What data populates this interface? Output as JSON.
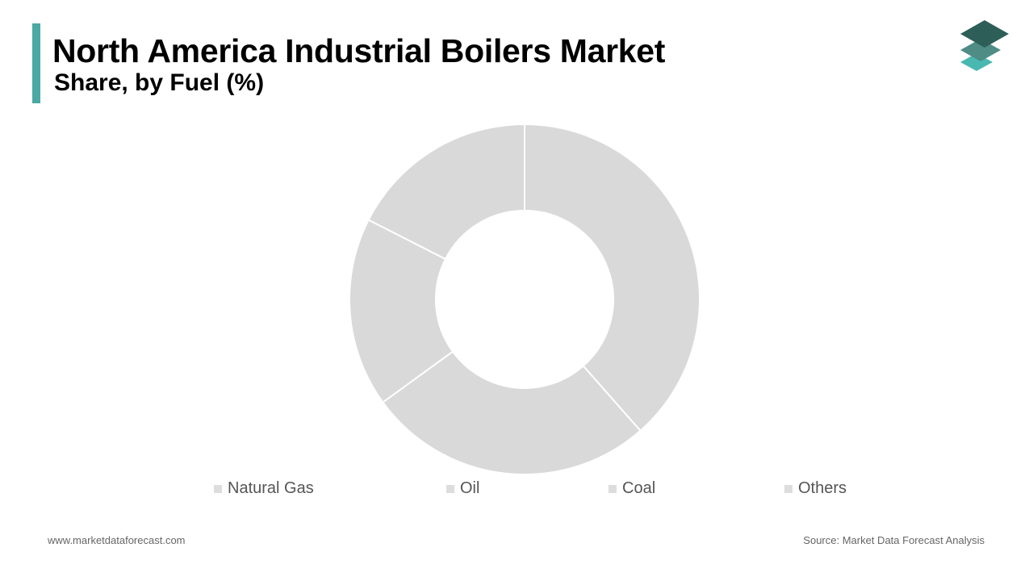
{
  "header": {
    "title": "North America Industrial Boilers Market",
    "subtitle": "Share, by Fuel (%)"
  },
  "colors": {
    "accent": "#4aa9a4",
    "logo_dark": "#2e5e58",
    "logo_mid": "#4f8c86",
    "logo_light": "#48b8b0",
    "slice": "#d9d9d9",
    "legend_swatch": "#dddddd"
  },
  "icons": {
    "logo": "stacked-layers-icon"
  },
  "chart_data": {
    "type": "pie",
    "variant": "donut",
    "categories": [
      "Natural Gas",
      "Oil",
      "Coal",
      "Others"
    ],
    "values": [
      38.5,
      26.5,
      17.5,
      17.5
    ],
    "legend": {
      "position": "bottom",
      "entries": [
        "Natural Gas",
        "Oil",
        "Coal",
        "Others"
      ]
    },
    "start_angle": "top",
    "direction": "clockwise"
  },
  "footer": {
    "website": "www.marketdataforecast.com",
    "source": "Source: Market Data Forecast Analysis"
  }
}
